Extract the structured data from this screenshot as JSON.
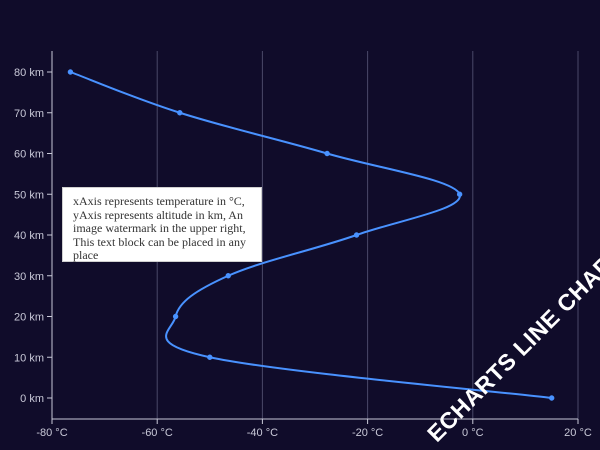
{
  "chart_data": {
    "type": "line",
    "title": "",
    "xlabel": "",
    "ylabel": "",
    "xlim": [
      -80,
      20
    ],
    "ylim": [
      0,
      80
    ],
    "x_ticks": [
      "-80 °C",
      "-60 °C",
      "-40 °C",
      "-20 °C",
      "0 °C",
      "20 °C"
    ],
    "y_ticks": [
      "0 km",
      "10 km",
      "20 km",
      "30 km",
      "40 km",
      "50 km",
      "60 km",
      "70 km",
      "80 km"
    ],
    "grid": "vertical",
    "line_color": "#4992ff",
    "series": [
      {
        "points": [
          {
            "x": 15,
            "y": 0
          },
          {
            "x": -50,
            "y": 10
          },
          {
            "x": -56.5,
            "y": 20
          },
          {
            "x": -46.5,
            "y": 30
          },
          {
            "x": -22.1,
            "y": 40
          },
          {
            "x": -2.5,
            "y": 50
          },
          {
            "x": -27.7,
            "y": 60
          },
          {
            "x": -55.7,
            "y": 70
          },
          {
            "x": -76.5,
            "y": 80
          }
        ]
      }
    ]
  },
  "note": {
    "text": "xAxis represents temperature in °C, yAxis represents altitude in km, An image watermark in the upper right, This text block can be placed in any place"
  },
  "watermark": {
    "text": "ECHARTS LINE CHART"
  }
}
